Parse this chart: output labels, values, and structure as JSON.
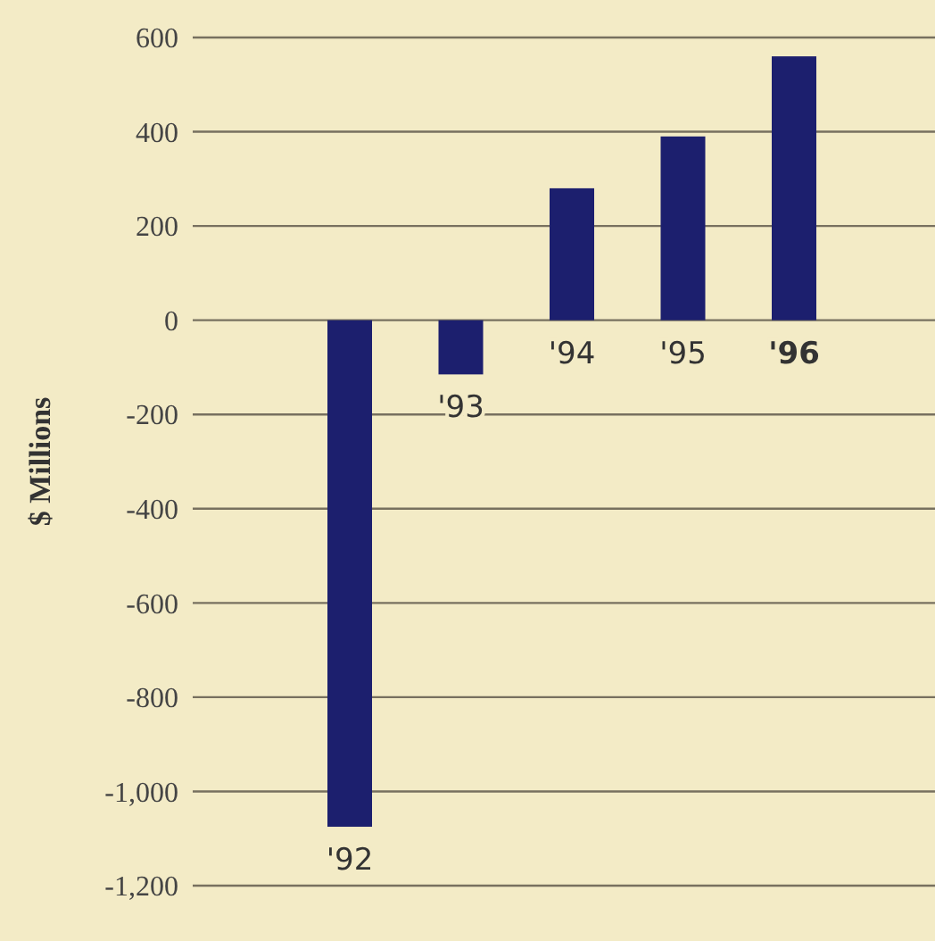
{
  "chart_data": {
    "type": "bar",
    "ylabel": "$ Millions",
    "categories": [
      "'92",
      "'93",
      "'94",
      "'95",
      "'96"
    ],
    "values": [
      -1075,
      -115,
      280,
      390,
      560
    ],
    "color": "#1c1f6e",
    "ylim": [
      -1200,
      600
    ],
    "yticks": [
      {
        "value": -1200,
        "label": "-1,200"
      },
      {
        "value": -1000,
        "label": "-1,000"
      },
      -800,
      -600,
      -400,
      -200,
      0,
      200,
      400,
      600
    ],
    "grid": "y"
  }
}
